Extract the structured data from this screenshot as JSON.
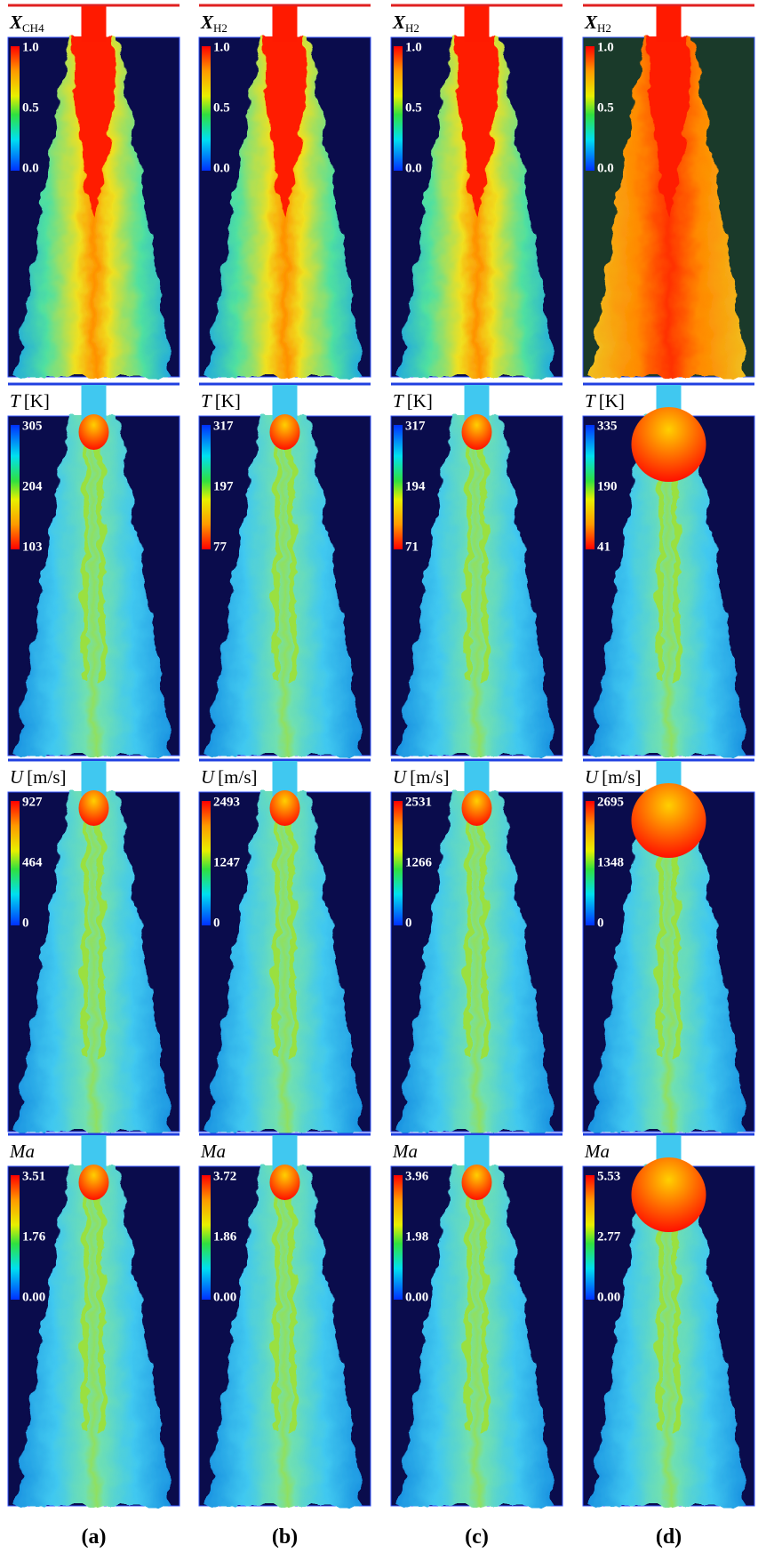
{
  "columns": [
    "(a)",
    "(b)",
    "(c)",
    "(d)"
  ],
  "rows": [
    {
      "panels": [
        {
          "symbol": "X",
          "subscript": "CH4",
          "ticks": [
            "1.0",
            "0.5",
            "0.0"
          ]
        },
        {
          "symbol": "X",
          "subscript": "H2",
          "ticks": [
            "1.0",
            "0.5",
            "0.0"
          ]
        },
        {
          "symbol": "X",
          "subscript": "H2",
          "ticks": [
            "1.0",
            "0.5",
            "0.0"
          ]
        },
        {
          "symbol": "X",
          "subscript": "H2",
          "ticks": [
            "1.0",
            "0.5",
            "0.0"
          ]
        }
      ]
    },
    {
      "panels": [
        {
          "symbol": "T",
          "unit": "[K]",
          "ticks": [
            "305",
            "204",
            "103"
          ]
        },
        {
          "symbol": "T",
          "unit": "[K]",
          "ticks": [
            "317",
            "197",
            "77"
          ]
        },
        {
          "symbol": "T",
          "unit": "[K]",
          "ticks": [
            "317",
            "194",
            "71"
          ]
        },
        {
          "symbol": "T",
          "unit": "[K]",
          "ticks": [
            "335",
            "190",
            "41"
          ]
        }
      ]
    },
    {
      "panels": [
        {
          "symbol": "U",
          "unit": "[m/s]",
          "ticks": [
            "927",
            "464",
            "0"
          ]
        },
        {
          "symbol": "U",
          "unit": "[m/s]",
          "ticks": [
            "2493",
            "1247",
            "0"
          ]
        },
        {
          "symbol": "U",
          "unit": "[m/s]",
          "ticks": [
            "2531",
            "1266",
            "0"
          ]
        },
        {
          "symbol": "U",
          "unit": "[m/s]",
          "ticks": [
            "2695",
            "1348",
            "0"
          ]
        }
      ]
    },
    {
      "panels": [
        {
          "symbol": "Ma",
          "ticks": [
            "3.51",
            "1.76",
            "0.00"
          ]
        },
        {
          "symbol": "Ma",
          "ticks": [
            "3.72",
            "1.86",
            "0.00"
          ]
        },
        {
          "symbol": "Ma",
          "ticks": [
            "3.96",
            "1.98",
            "0.00"
          ]
        },
        {
          "symbol": "Ma",
          "ticks": [
            "5.53",
            "2.77",
            "0.00"
          ]
        }
      ]
    }
  ]
}
